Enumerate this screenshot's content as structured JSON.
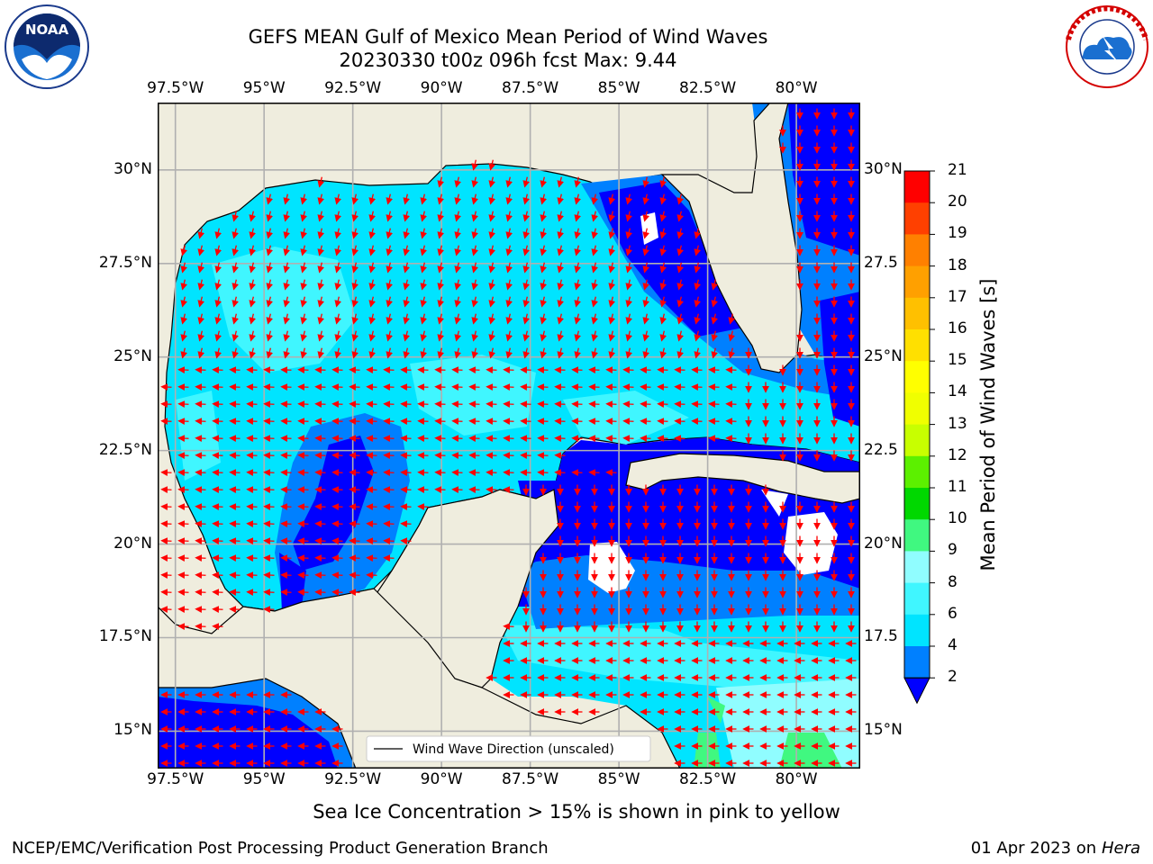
{
  "header": {
    "title_line1": "GEFS MEAN Gulf of Mexico Mean Period of Wind Waves",
    "title_line2": "20230330 t00z 096h fcst   Max: 9.44",
    "left_logo_text": "NOAA",
    "left_logo_ring_text": "NATIONAL OCEANIC AND ATMOSPHERIC ADMINISTRATION · U.S. DEPARTMENT OF COMMERCE",
    "right_logo_ring_text": "NATIONAL WEATHER SERVICE"
  },
  "map": {
    "lon_range": [
      -98.0,
      -78.2
    ],
    "lat_range": [
      14.0,
      31.8
    ],
    "lon_ticks": [
      "97.5°W",
      "95°W",
      "92.5°W",
      "90°W",
      "87.5°W",
      "85°W",
      "82.5°W",
      "80°W"
    ],
    "lon_tick_values": [
      -97.5,
      -95,
      -92.5,
      -90,
      -87.5,
      -85,
      -82.5,
      -80
    ],
    "lat_ticks_left": [
      "30°N",
      "27.5°N",
      "25°N",
      "22.5°N",
      "20°N",
      "17.5°N",
      "15°N"
    ],
    "lat_ticks_right": [
      "30°N",
      "27.5",
      "25°N",
      "22.5",
      "20°N",
      "17.5",
      "15°N"
    ],
    "lat_tick_values": [
      30,
      27.5,
      25,
      22.5,
      20,
      17.5,
      15
    ],
    "legend_label": "Wind Wave Direction (unscaled)",
    "grid": true
  },
  "colorbar": {
    "label": "Mean Period of Wind Waves [s]",
    "levels": [
      2,
      4,
      6,
      8,
      9,
      10,
      11,
      12,
      13,
      14,
      15,
      16,
      17,
      18,
      19,
      20,
      21
    ],
    "colors": [
      "#0080ff",
      "#00e4ff",
      "#40f6ff",
      "#90fdff",
      "#40f880",
      "#00d800",
      "#5cf000",
      "#c8ff00",
      "#f0ff00",
      "#ffff00",
      "#ffe000",
      "#ffc000",
      "#ffa000",
      "#ff8000",
      "#ff4000",
      "#ff0000"
    ],
    "under_color": "#0000ff"
  },
  "colors": {
    "land": "#efedde",
    "lt2": "#0000ff",
    "band_2_4": "#0080ff",
    "band_4_6": "#00e4ff",
    "band_6_8": "#40f6ff",
    "band_8_9": "#90fdff",
    "band_9_10": "#40f880",
    "no_data": "#ffffff",
    "arrow": "#ff0000",
    "grid": "#b0b0b0"
  },
  "notes": {
    "sea_ice": "Sea Ice Concentration > 15% is shown in pink to yellow"
  },
  "footer": {
    "left": "NCEP/EMC/Verification Post Processing Product Generation Branch",
    "date": "01 Apr 2023",
    "on_word": "on",
    "machine": "Hera"
  }
}
